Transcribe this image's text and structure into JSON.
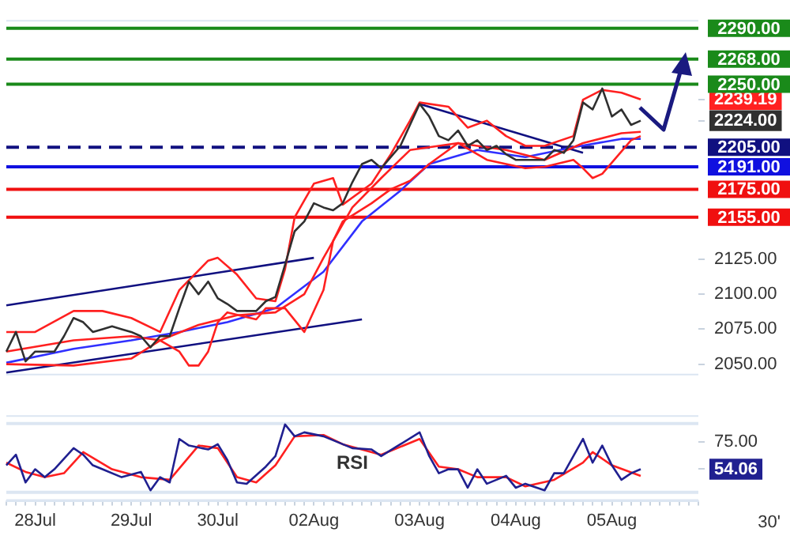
{
  "chart_data": [
    {
      "type": "line",
      "marker": "none",
      "tick_labels": "y",
      "ylim": [
        2042,
        2296
      ],
      "categories": [
        null,
        null,
        null,
        null,
        null,
        null,
        null,
        null,
        null,
        null,
        null,
        null,
        null,
        null,
        null,
        null,
        null,
        null,
        null,
        null,
        null,
        null,
        null,
        null,
        null,
        null,
        null,
        null,
        null,
        null,
        null,
        null,
        null,
        null,
        null,
        null,
        null,
        null,
        null,
        null,
        null,
        null,
        null,
        null,
        null,
        null,
        null,
        null,
        null,
        null,
        null,
        null,
        null,
        null,
        null,
        null,
        null,
        null,
        null,
        null,
        null,
        null,
        null,
        null,
        null,
        null,
        null,
        null,
        null,
        null,
        null,
        null,
        null
      ],
      "yticks": [
        {
          "value": 2050,
          "label": "2050.00"
        },
        {
          "value": 2075,
          "label": "2075.00"
        },
        {
          "value": 2100,
          "label": "2100.00"
        },
        {
          "value": 2125,
          "label": "2125.00"
        },
        {
          "value": 2224,
          "label": "2224.00"
        },
        {
          "value": 2239.19,
          "label": "2239.19"
        }
      ],
      "series": [
        {
          "color": "#303030",
          "values": [
            2059,
            2073,
            2052,
            2059,
            2059,
            2059,
            2070,
            2083,
            2080,
            2073,
            2075,
            2077,
            2075,
            2073,
            2070,
            2062,
            2070,
            2070,
            2090,
            2109,
            2100,
            2109,
            2097,
            2093,
            2088,
            2088,
            2088,
            2095,
            2098,
            2121,
            2145,
            2152,
            2165,
            2162,
            2160,
            2165,
            2180,
            2193,
            2196,
            2190,
            2198,
            2206,
            2221,
            2236,
            2227,
            2213,
            2210,
            2217,
            2206,
            2210,
            2203,
            2206,
            2200,
            2196,
            2196,
            2196,
            2196,
            2203,
            2201,
            2210,
            2237,
            2232,
            2247,
            2227,
            2232,
            2221,
            2224,
            null,
            null,
            null,
            null,
            null,
            null
          ]
        },
        {
          "color": "#ff2020",
          "values": [
            2073,
            null,
            null,
            2073,
            null,
            null,
            null,
            2088,
            null,
            null,
            2088,
            null,
            null,
            2083,
            null,
            null,
            2073,
            null,
            2103,
            null,
            null,
            2124,
            2126,
            null,
            2114,
            null,
            2097,
            null,
            2095,
            2118,
            2155,
            null,
            2179,
            null,
            2183,
            2164,
            null,
            null,
            2179,
            null,
            2200,
            null,
            2224,
            2237,
            null,
            null,
            2234,
            null,
            2219,
            null,
            2224,
            null,
            2213,
            null,
            2206,
            null,
            2206,
            null,
            null,
            2213,
            2239,
            null,
            2246,
            null,
            2244,
            null,
            2239.19,
            null,
            null,
            null,
            null,
            null,
            null
          ]
        },
        {
          "color": "#ff2020",
          "values": [
            2050,
            null,
            null,
            null,
            null,
            null,
            null,
            2049,
            null,
            null,
            null,
            null,
            null,
            2054,
            null,
            null,
            2067,
            null,
            2059,
            2049,
            2049,
            2059,
            2080,
            2087,
            null,
            null,
            2082,
            2090,
            null,
            2090,
            null,
            2073,
            null,
            2103,
            2138,
            2152,
            null,
            null,
            2165,
            null,
            2175,
            null,
            2181,
            null,
            2193,
            null,
            null,
            2208,
            null,
            null,
            2196,
            null,
            null,
            null,
            2190,
            null,
            2191,
            null,
            null,
            2196,
            2190,
            2183,
            2186,
            null,
            null,
            2210,
            2213,
            null,
            null,
            null,
            null,
            null,
            null
          ]
        },
        {
          "color": "#ff2020",
          "values": [
            2059,
            null,
            null,
            null,
            null,
            null,
            null,
            2067,
            null,
            null,
            null,
            null,
            null,
            2070,
            null,
            null,
            2067,
            null,
            null,
            null,
            2078,
            null,
            null,
            null,
            2085,
            null,
            null,
            null,
            2087,
            null,
            null,
            2100,
            null,
            2126,
            null,
            null,
            2162,
            null,
            null,
            2183,
            null,
            null,
            2203,
            null,
            null,
            null,
            null,
            2208,
            null,
            null,
            null,
            null,
            2203,
            null,
            null,
            null,
            2196,
            null,
            null,
            null,
            2208,
            null,
            null,
            null,
            2215,
            null,
            2216,
            null,
            null,
            null,
            null,
            null,
            null
          ]
        },
        {
          "color": "#3030ff",
          "values": [
            2051,
            null,
            null,
            null,
            null,
            null,
            null,
            2061,
            null,
            null,
            null,
            null,
            null,
            2067,
            null,
            null,
            null,
            null,
            2073,
            null,
            null,
            null,
            null,
            2080,
            null,
            null,
            null,
            null,
            2090,
            null,
            null,
            null,
            null,
            2116,
            null,
            null,
            null,
            2152,
            null,
            null,
            null,
            2174,
            null,
            null,
            2193,
            null,
            null,
            null,
            null,
            2203,
            null,
            null,
            null,
            null,
            2198,
            null,
            null,
            null,
            null,
            2205,
            null,
            null,
            null,
            null,
            2211,
            null,
            2211,
            null,
            null,
            null,
            null,
            null,
            null
          ]
        },
        {
          "color": "#101080",
          "values": [
            2092,
            null,
            null,
            null,
            null,
            null,
            null,
            null,
            null,
            null,
            null,
            null,
            null,
            null,
            null,
            null,
            null,
            null,
            null,
            null,
            null,
            null,
            null,
            null,
            null,
            null,
            null,
            null,
            null,
            null,
            null,
            null,
            2126,
            null,
            null,
            null,
            null,
            null,
            null,
            null,
            null,
            null,
            null,
            null,
            null,
            null,
            null,
            null,
            null,
            null,
            null,
            null,
            null,
            null,
            null,
            null,
            null,
            null,
            null,
            null,
            null,
            null,
            null,
            null,
            null,
            null,
            null,
            null,
            null,
            null,
            null,
            null,
            null
          ]
        },
        {
          "color": "#101080",
          "values": [
            2044,
            null,
            null,
            null,
            null,
            null,
            null,
            null,
            null,
            null,
            null,
            null,
            null,
            null,
            null,
            null,
            null,
            null,
            null,
            null,
            null,
            null,
            null,
            null,
            null,
            null,
            null,
            null,
            null,
            null,
            null,
            null,
            null,
            null,
            null,
            null,
            null,
            2082,
            null,
            null,
            null,
            null,
            null,
            null,
            null,
            null,
            null,
            null,
            null,
            null,
            null,
            null,
            null,
            null,
            null,
            null,
            null,
            null,
            null,
            null,
            null,
            null,
            null,
            null,
            null,
            null,
            null,
            null,
            null,
            null,
            null,
            null,
            null
          ]
        },
        {
          "color": "#101080",
          "values": [
            null,
            null,
            null,
            null,
            null,
            null,
            null,
            null,
            null,
            null,
            null,
            null,
            null,
            null,
            null,
            null,
            null,
            null,
            null,
            null,
            null,
            null,
            null,
            null,
            null,
            null,
            null,
            null,
            null,
            null,
            null,
            null,
            null,
            null,
            null,
            null,
            null,
            null,
            null,
            null,
            null,
            null,
            null,
            2236,
            null,
            null,
            null,
            null,
            null,
            null,
            null,
            null,
            null,
            null,
            null,
            null,
            null,
            null,
            null,
            null,
            2201,
            null,
            null,
            null,
            null,
            null,
            null,
            null,
            null,
            null,
            null,
            null,
            null
          ]
        }
      ],
      "ref_lines": [
        {
          "axis": "y",
          "value": 2290,
          "label": "2290.00",
          "color": "#1a8a1a"
        },
        {
          "axis": "y",
          "value": 2268,
          "label": "2268.00",
          "color": "#1a8a1a"
        },
        {
          "axis": "y",
          "value": 2250,
          "label": "2250.00",
          "color": "#1a8a1a"
        },
        {
          "axis": "y",
          "value": 2205,
          "label": "2205.00",
          "color": "#101080",
          "line_style": "dashed"
        },
        {
          "axis": "y",
          "value": 2191,
          "label": "2191.00",
          "color": "#1010e0"
        },
        {
          "axis": "y",
          "value": 2175,
          "label": "2175.00",
          "color": "#f01010"
        },
        {
          "axis": "y",
          "value": 2155,
          "label": "2155.00",
          "color": "#f01010"
        }
      ]
    },
    {
      "type": "line",
      "title": "RSI",
      "marker": "none",
      "ylim": [
        30,
        95
      ],
      "categories": [
        null,
        null,
        null,
        "28Jul",
        null,
        null,
        null,
        null,
        null,
        null,
        null,
        null,
        null,
        "29Jul",
        null,
        null,
        null,
        null,
        null,
        null,
        null,
        null,
        "30Jul",
        null,
        null,
        null,
        null,
        null,
        null,
        null,
        null,
        null,
        "02Aug",
        null,
        null,
        null,
        null,
        null,
        null,
        null,
        null,
        null,
        null,
        "03Aug",
        null,
        null,
        null,
        null,
        null,
        null,
        null,
        null,
        null,
        "04Aug",
        null,
        null,
        null,
        null,
        null,
        null,
        null,
        null,
        null,
        "05Aug",
        null,
        null,
        null,
        null,
        null,
        null,
        null,
        null,
        null
      ],
      "yticks": [
        {
          "value": 54.06,
          "label": "54.06"
        },
        {
          "value": 75,
          "label": "75.00"
        }
      ],
      "series": [
        {
          "color": "#202090",
          "values": [
            57,
            65,
            44,
            54,
            48,
            54,
            null,
            70,
            65,
            57,
            54,
            null,
            48,
            null,
            52,
            38,
            48,
            44,
            77,
            72,
            null,
            69,
            73,
            61,
            44,
            43,
            null,
            56,
            64,
            88,
            79,
            82,
            null,
            79,
            null,
            73,
            70,
            null,
            69,
            64,
            null,
            73,
            null,
            82,
            64,
            51,
            54,
            54,
            40,
            54,
            43,
            null,
            49,
            40,
            43,
            null,
            38,
            51,
            51,
            64,
            77,
            59,
            72,
            57,
            46,
            51,
            54.06,
            null,
            null,
            null,
            null,
            null,
            null
          ]
        },
        {
          "color": "#ff2020",
          "values": [
            59,
            null,
            52,
            null,
            48,
            null,
            51,
            null,
            67,
            null,
            null,
            54,
            null,
            null,
            48,
            null,
            null,
            46,
            null,
            null,
            72,
            null,
            70,
            null,
            48,
            null,
            44,
            null,
            57,
            null,
            79,
            null,
            null,
            80,
            null,
            73,
            null,
            null,
            null,
            65,
            null,
            null,
            null,
            77,
            null,
            56,
            null,
            54,
            null,
            48,
            null,
            null,
            48,
            null,
            41,
            null,
            null,
            46,
            null,
            null,
            59,
            67,
            null,
            57,
            null,
            null,
            49,
            null,
            null,
            null,
            null,
            null,
            null
          ]
        }
      ],
      "ref_lines": [
        {
          "axis": "y",
          "value": 88.6,
          "color": "#dce6f2"
        },
        {
          "axis": "y",
          "value": 36.5,
          "color": "#dce6f2"
        }
      ],
      "annotations": [
        "30'"
      ]
    }
  ]
}
